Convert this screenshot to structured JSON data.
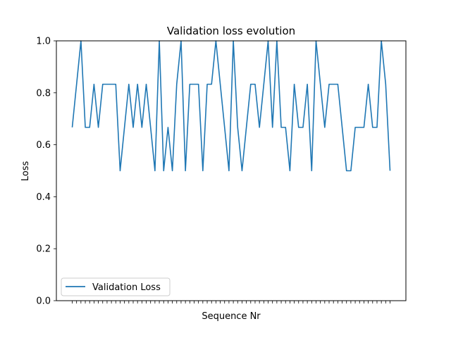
{
  "chart_data": {
    "type": "line",
    "title": "Validation loss evolution",
    "xlabel": "Sequence Nr",
    "ylabel": "Loss",
    "ylim": [
      0,
      1
    ],
    "yticks": [
      "0.0",
      "0.2",
      "0.4",
      "0.6",
      "0.8",
      "1.0"
    ],
    "x_tick_labels_visible": false,
    "legend_position": "lower-left",
    "grid": false,
    "series": [
      {
        "name": "Validation Loss",
        "color": "#1f77b4",
        "values": [
          0.667,
          0.833,
          1.0,
          0.667,
          0.667,
          0.833,
          0.667,
          0.833,
          0.833,
          0.833,
          0.833,
          0.5,
          0.667,
          0.833,
          0.667,
          0.833,
          0.667,
          0.833,
          0.667,
          0.5,
          1.0,
          0.5,
          0.667,
          0.5,
          0.833,
          1.0,
          0.5,
          0.833,
          0.833,
          0.833,
          0.5,
          0.833,
          0.833,
          1.0,
          0.833,
          0.667,
          0.5,
          1.0,
          0.667,
          0.5,
          0.667,
          0.833,
          0.833,
          0.667,
          0.833,
          1.0,
          0.667,
          1.0,
          0.667,
          0.667,
          0.5,
          0.833,
          0.667,
          0.667,
          0.833,
          0.5,
          1.0,
          0.833,
          0.667,
          0.833,
          0.833,
          0.833,
          0.667,
          0.5,
          0.5,
          0.667,
          0.667,
          0.667,
          0.833,
          0.667,
          0.667,
          1.0,
          0.833,
          0.5
        ]
      }
    ]
  }
}
